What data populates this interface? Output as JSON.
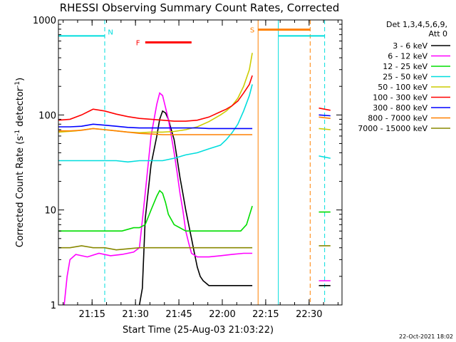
{
  "chart_data": {
    "type": "line",
    "title": "RHESSI Observing Summary Count Rates, Corrected",
    "xlabel": "Start Time (25-Aug-03 21:03:22)",
    "ylabel": "Corrected Count Rate (s",
    "ylabel_sup1": "-1",
    "ylabel_mid": " detector",
    "ylabel_sup2": "-1",
    "ylabel_end": ")",
    "yscale": "log",
    "ylim": [
      1,
      1000
    ],
    "xlim_minutes": [
      0,
      98
    ],
    "x_ticks": [
      {
        "label": "21:15",
        "t": 11.63
      },
      {
        "label": "21:30",
        "t": 26.63
      },
      {
        "label": "21:45",
        "t": 41.63
      },
      {
        "label": "22:00",
        "t": 56.63
      },
      {
        "label": "22:15",
        "t": 71.63
      },
      {
        "label": "22:30",
        "t": 86.63
      }
    ],
    "y_ticks": [
      {
        "label": "1",
        "v": 1
      },
      {
        "label": "10",
        "v": 10
      },
      {
        "label": "100",
        "v": 100
      },
      {
        "label": "1000",
        "v": 1000
      }
    ],
    "footer_date": "22-Oct-2021 18:02",
    "legend_header": [
      "Det 1,3,4,5,6,9,",
      "Att 0"
    ],
    "series": [
      {
        "name": "3 - 6 keV",
        "color": "#000000",
        "points": [
          [
            28,
            1
          ],
          [
            29,
            1.5
          ],
          [
            30,
            8
          ],
          [
            32,
            30
          ],
          [
            34,
            60
          ],
          [
            35,
            90
          ],
          [
            36,
            110
          ],
          [
            37,
            105
          ],
          [
            38,
            90
          ],
          [
            39,
            70
          ],
          [
            40,
            55
          ],
          [
            41,
            35
          ],
          [
            42,
            22
          ],
          [
            43,
            15
          ],
          [
            44,
            10
          ],
          [
            45,
            7
          ],
          [
            46,
            5
          ],
          [
            47,
            3.5
          ],
          [
            48,
            2.5
          ],
          [
            49,
            2
          ],
          [
            50,
            1.8
          ],
          [
            52,
            1.6
          ],
          [
            54,
            1.6
          ],
          [
            56,
            1.6
          ],
          [
            58,
            1.6
          ],
          [
            60,
            1.6
          ],
          [
            62,
            1.6
          ],
          [
            64,
            1.6
          ],
          [
            66,
            1.6
          ],
          [
            67,
            1.6
          ]
        ],
        "after": [
          [
            90,
            1.6
          ],
          [
            94,
            1.6
          ]
        ]
      },
      {
        "name": "6 - 12 keV",
        "color": "#ff00ff",
        "points": [
          [
            2,
            1
          ],
          [
            3,
            2
          ],
          [
            4,
            3
          ],
          [
            6,
            3.4
          ],
          [
            10,
            3.2
          ],
          [
            14,
            3.5
          ],
          [
            18,
            3.3
          ],
          [
            22,
            3.4
          ],
          [
            26,
            3.6
          ],
          [
            28,
            4
          ],
          [
            30,
            15
          ],
          [
            32,
            60
          ],
          [
            34,
            130
          ],
          [
            35,
            170
          ],
          [
            36,
            160
          ],
          [
            37,
            120
          ],
          [
            38,
            90
          ],
          [
            39,
            60
          ],
          [
            40,
            40
          ],
          [
            41,
            25
          ],
          [
            42,
            15
          ],
          [
            43,
            10
          ],
          [
            44,
            6
          ],
          [
            45,
            4.5
          ],
          [
            46,
            3.5
          ],
          [
            48,
            3.2
          ],
          [
            52,
            3.2
          ],
          [
            56,
            3.3
          ],
          [
            60,
            3.4
          ],
          [
            64,
            3.5
          ],
          [
            67,
            3.5
          ]
        ],
        "after": [
          [
            90,
            1.8
          ],
          [
            94,
            1.8
          ]
        ]
      },
      {
        "name": "12 - 25 keV",
        "color": "#00dd00",
        "points": [
          [
            0,
            6
          ],
          [
            6,
            6
          ],
          [
            12,
            6
          ],
          [
            18,
            6
          ],
          [
            22,
            6
          ],
          [
            26,
            6.5
          ],
          [
            28,
            6.5
          ],
          [
            30,
            7
          ],
          [
            32,
            10
          ],
          [
            34,
            14
          ],
          [
            35,
            16
          ],
          [
            36,
            15
          ],
          [
            37,
            12
          ],
          [
            38,
            9
          ],
          [
            40,
            7
          ],
          [
            44,
            6
          ],
          [
            48,
            6
          ],
          [
            52,
            6
          ],
          [
            56,
            6
          ],
          [
            60,
            6
          ],
          [
            63,
            6
          ],
          [
            65,
            7
          ],
          [
            67,
            11
          ]
        ],
        "after": [
          [
            90,
            9.5
          ],
          [
            94,
            9.5
          ]
        ]
      },
      {
        "name": "25 - 50 keV",
        "color": "#00dddd",
        "points": [
          [
            0,
            33
          ],
          [
            6,
            33
          ],
          [
            12,
            33
          ],
          [
            16,
            33
          ],
          [
            20,
            33
          ],
          [
            24,
            32
          ],
          [
            28,
            33
          ],
          [
            32,
            33
          ],
          [
            36,
            33
          ],
          [
            40,
            35
          ],
          [
            44,
            38
          ],
          [
            48,
            40
          ],
          [
            52,
            44
          ],
          [
            56,
            48
          ],
          [
            58,
            55
          ],
          [
            60,
            65
          ],
          [
            62,
            80
          ],
          [
            64,
            110
          ],
          [
            66,
            160
          ],
          [
            67,
            210
          ]
        ],
        "after": [
          [
            90,
            37
          ],
          [
            94,
            35
          ]
        ]
      },
      {
        "name": "50 - 100 keV",
        "color": "#cccc00",
        "points": [
          [
            0,
            66
          ],
          [
            6,
            68
          ],
          [
            12,
            72
          ],
          [
            16,
            70
          ],
          [
            20,
            68
          ],
          [
            24,
            66
          ],
          [
            28,
            65
          ],
          [
            32,
            66
          ],
          [
            36,
            66
          ],
          [
            40,
            67
          ],
          [
            44,
            70
          ],
          [
            48,
            75
          ],
          [
            52,
            85
          ],
          [
            56,
            100
          ],
          [
            58,
            110
          ],
          [
            60,
            125
          ],
          [
            62,
            150
          ],
          [
            64,
            200
          ],
          [
            66,
            300
          ],
          [
            67,
            450
          ]
        ],
        "after": [
          [
            90,
            72
          ],
          [
            94,
            70
          ]
        ]
      },
      {
        "name": "100 - 300 keV",
        "color": "#ff0000",
        "points": [
          [
            0,
            88
          ],
          [
            4,
            90
          ],
          [
            8,
            100
          ],
          [
            12,
            115
          ],
          [
            16,
            110
          ],
          [
            20,
            102
          ],
          [
            24,
            96
          ],
          [
            28,
            92
          ],
          [
            32,
            90
          ],
          [
            36,
            88
          ],
          [
            40,
            86
          ],
          [
            44,
            86
          ],
          [
            48,
            88
          ],
          [
            52,
            95
          ],
          [
            56,
            108
          ],
          [
            58,
            115
          ],
          [
            60,
            125
          ],
          [
            62,
            140
          ],
          [
            64,
            170
          ],
          [
            66,
            210
          ],
          [
            67,
            260
          ]
        ],
        "after": [
          [
            90,
            118
          ],
          [
            94,
            112
          ]
        ]
      },
      {
        "name": "300 - 800 keV",
        "color": "#0000ff",
        "points": [
          [
            0,
            75
          ],
          [
            4,
            75
          ],
          [
            8,
            76
          ],
          [
            12,
            80
          ],
          [
            16,
            78
          ],
          [
            20,
            76
          ],
          [
            24,
            74
          ],
          [
            28,
            73
          ],
          [
            32,
            73
          ],
          [
            36,
            73
          ],
          [
            40,
            73
          ],
          [
            44,
            73
          ],
          [
            48,
            73
          ],
          [
            52,
            72
          ],
          [
            56,
            72
          ],
          [
            60,
            72
          ],
          [
            64,
            72
          ],
          [
            67,
            72
          ]
        ],
        "after": [
          [
            90,
            100
          ],
          [
            94,
            98
          ]
        ]
      },
      {
        "name": "800 - 7000 keV",
        "color": "#ff8000",
        "points": [
          [
            0,
            68
          ],
          [
            4,
            68
          ],
          [
            8,
            69
          ],
          [
            12,
            72
          ],
          [
            16,
            70
          ],
          [
            20,
            68
          ],
          [
            24,
            66
          ],
          [
            28,
            64
          ],
          [
            32,
            63
          ],
          [
            36,
            62
          ],
          [
            40,
            62
          ],
          [
            44,
            62
          ],
          [
            48,
            62
          ],
          [
            52,
            62
          ],
          [
            56,
            62
          ],
          [
            60,
            62
          ],
          [
            64,
            62
          ],
          [
            67,
            62
          ]
        ],
        "after": [
          [
            90,
            95
          ],
          [
            94,
            92
          ]
        ]
      },
      {
        "name": "7000 - 15000 keV",
        "color": "#888800",
        "points": [
          [
            0,
            4
          ],
          [
            4,
            4
          ],
          [
            8,
            4.2
          ],
          [
            12,
            4
          ],
          [
            16,
            4
          ],
          [
            20,
            3.8
          ],
          [
            24,
            3.9
          ],
          [
            28,
            4
          ],
          [
            32,
            4
          ],
          [
            36,
            4
          ],
          [
            40,
            4
          ],
          [
            44,
            4
          ],
          [
            48,
            4
          ],
          [
            52,
            4
          ],
          [
            56,
            4
          ],
          [
            60,
            4
          ],
          [
            64,
            4
          ],
          [
            67,
            4
          ]
        ],
        "after": [
          [
            90,
            4.2
          ],
          [
            94,
            4.2
          ]
        ]
      }
    ],
    "flag_bars": [
      {
        "label": "F",
        "color": "#ff0000",
        "t_start": 30,
        "t_end": 46,
        "v": 580,
        "label_t": 27.5
      },
      {
        "label": "S",
        "color": "#ff8000",
        "t_start": 69,
        "t_end": 87,
        "v": 790,
        "label_t": 67
      }
    ],
    "night_label": {
      "label": "N",
      "color": "#00dddd",
      "t": 18
    },
    "night_periods": [
      {
        "t_start": 0,
        "t_end": 16,
        "v": 680
      },
      {
        "t_start": 76,
        "t_end": 92,
        "v": 680
      }
    ],
    "event_lines": [
      {
        "color": "#00dddd",
        "style": "dashed",
        "t": 16
      },
      {
        "color": "#ff8000",
        "style": "solid",
        "t": 69
      },
      {
        "color": "#00dddd",
        "style": "solid",
        "t": 76
      },
      {
        "color": "#ff8000",
        "style": "dashed",
        "t": 87
      },
      {
        "color": "#00dddd",
        "style": "dashed",
        "t": 92
      }
    ]
  }
}
